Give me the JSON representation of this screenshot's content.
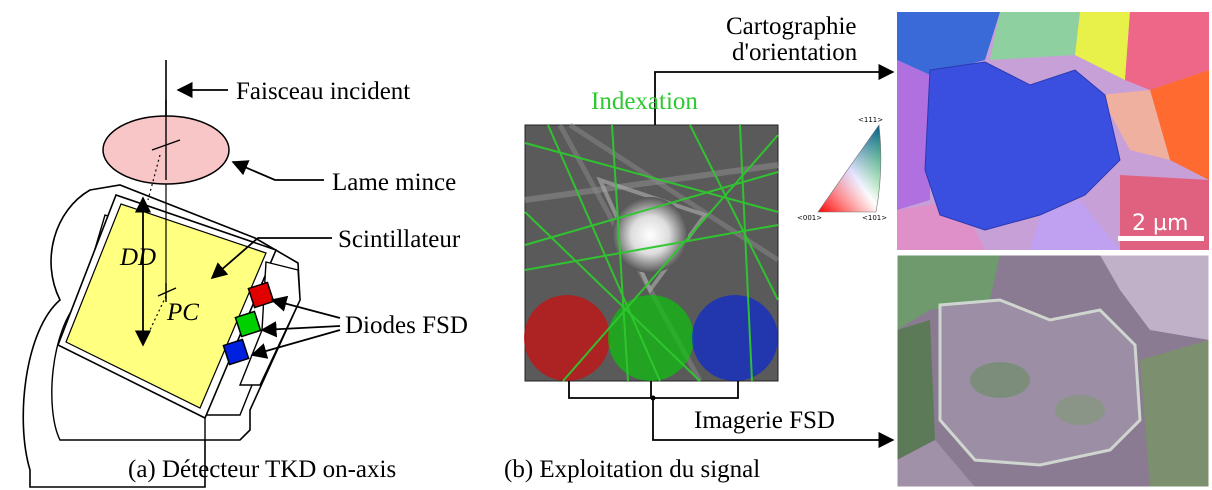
{
  "panel_a": {
    "labels": {
      "beam": "Faisceau incident",
      "foil": "Lame mince",
      "scintillator": "Scintillateur",
      "diodes": "Diodes FSD",
      "dd": "DD",
      "pc": "PC"
    },
    "caption": "(a) Détecteur TKD on-axis"
  },
  "panel_b": {
    "indexation": "Indexation",
    "mapping_line1": "Cartographie",
    "mapping_line2": "d'orientation",
    "fsd_imaging": "Imagerie FSD",
    "ipf_key": {
      "top": "<111>",
      "left": "<001>",
      "right": "<101>"
    },
    "scale_bar": "2 µm",
    "caption": "(b) Exploitation du signal"
  },
  "colors": {
    "scintillator": "#ffff80",
    "foil": "#f8c6c6",
    "indexation_green": "#2ec82e",
    "diode_red": "#e00000",
    "diode_green": "#00d000",
    "diode_blue": "#0020e0",
    "map_blue": "#3a4fe0"
  }
}
